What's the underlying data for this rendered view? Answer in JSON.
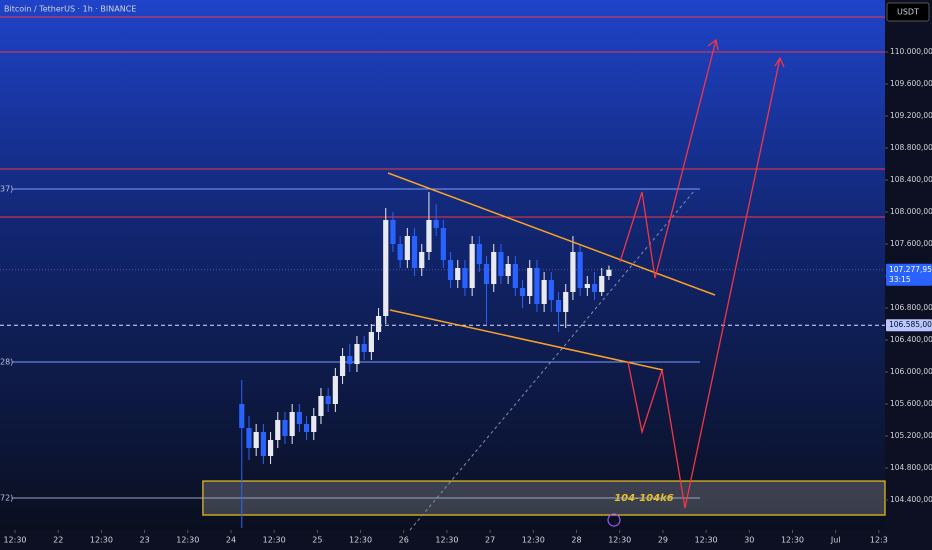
{
  "chart_data": {
    "type": "candlestick",
    "title": "Bitcoin / TetherUS · 1h · BINANCE",
    "currency": "USDT",
    "xlim": [
      -4.17,
      241.7
    ],
    "ylim": [
      104025,
      110650
    ],
    "xticks": [
      {
        "value": 0,
        "label": "12:30"
      },
      {
        "value": 12,
        "label": "22"
      },
      {
        "value": 24,
        "label": "12:30"
      },
      {
        "value": 36,
        "label": "23"
      },
      {
        "value": 48,
        "label": "12:30"
      },
      {
        "value": 60,
        "label": "24"
      },
      {
        "value": 72,
        "label": "12:30"
      },
      {
        "value": 84,
        "label": "25"
      },
      {
        "value": 96,
        "label": "12:30"
      },
      {
        "value": 108,
        "label": "26"
      },
      {
        "value": 120,
        "label": "12:30"
      },
      {
        "value": 132,
        "label": "27"
      },
      {
        "value": 144,
        "label": "12:30"
      },
      {
        "value": 156,
        "label": "28"
      },
      {
        "value": 168,
        "label": "12:30"
      },
      {
        "value": 180,
        "label": "29"
      },
      {
        "value": 192,
        "label": "12:30"
      },
      {
        "value": 204,
        "label": "30"
      },
      {
        "value": 216,
        "label": "12:30"
      },
      {
        "value": 228,
        "label": "Jul"
      },
      {
        "value": 240,
        "label": "12:3"
      }
    ],
    "yticks": [
      {
        "value": 104400,
        "label": "104.400,00"
      },
      {
        "value": 104800,
        "label": "104.800,00"
      },
      {
        "value": 105200,
        "label": "105.200,00"
      },
      {
        "value": 105600,
        "label": "105.600,00"
      },
      {
        "value": 106000,
        "label": "106.000,00"
      },
      {
        "value": 106400,
        "label": "106.400,00"
      },
      {
        "value": 106800,
        "label": "106.800,00"
      },
      {
        "value": 107200,
        "label": "107.200,00"
      },
      {
        "value": 107600,
        "label": "107.600,00"
      },
      {
        "value": 108000,
        "label": "108.000,00"
      },
      {
        "value": 108400,
        "label": "108.400,00"
      },
      {
        "value": 108800,
        "label": "108.800,00"
      },
      {
        "value": 109200,
        "label": "109.200,00"
      },
      {
        "value": 109600,
        "label": "109.600,00"
      },
      {
        "value": 110000,
        "label": "110.000,00"
      }
    ],
    "up_color": "#e8eaf0",
    "down_color": "#2962ff",
    "x": [
      63,
      65,
      67,
      69,
      71,
      73,
      75,
      77,
      79,
      81,
      83,
      85,
      87,
      89,
      91,
      93,
      95,
      97,
      99,
      101,
      103,
      105,
      107,
      109,
      111,
      113,
      115,
      117,
      119,
      121,
      123,
      125,
      127,
      129,
      131,
      133,
      135,
      137,
      139,
      141,
      143,
      145,
      147,
      149,
      151,
      153,
      155,
      157,
      159,
      161,
      163,
      165
    ],
    "open": [
      105600,
      105300,
      105050,
      105250,
      104950,
      105150,
      105400,
      105200,
      105500,
      105350,
      105250,
      105450,
      105700,
      105600,
      105950,
      106200,
      106100,
      106350,
      106250,
      106500,
      106700,
      107900,
      107600,
      107400,
      107700,
      107300,
      107500,
      107900,
      107800,
      107400,
      107150,
      107300,
      107050,
      107600,
      107350,
      107100,
      107500,
      107200,
      107350,
      107050,
      106950,
      107300,
      106850,
      107150,
      106900,
      106750,
      107000,
      107500,
      107050,
      107100,
      107000,
      107200
    ],
    "high": [
      105900,
      105450,
      105350,
      105350,
      105250,
      105500,
      105500,
      105600,
      105600,
      105450,
      105550,
      105800,
      105800,
      106050,
      106300,
      106350,
      106450,
      106450,
      106600,
      106800,
      108050,
      108000,
      107700,
      107800,
      107800,
      107600,
      108250,
      108100,
      107900,
      107500,
      107400,
      107400,
      107700,
      107700,
      107450,
      107600,
      107600,
      107450,
      107450,
      107150,
      107400,
      107400,
      107250,
      107250,
      107000,
      107100,
      107700,
      107600,
      107200,
      107250,
      107300,
      107330
    ],
    "low": [
      104050,
      104900,
      104950,
      104850,
      104850,
      105050,
      105100,
      105100,
      105250,
      105150,
      105150,
      105350,
      105500,
      105500,
      105850,
      106000,
      106000,
      106150,
      106150,
      106400,
      106600,
      107500,
      107300,
      107300,
      107200,
      107200,
      107400,
      107700,
      107300,
      107050,
      107050,
      106950,
      106950,
      107250,
      106600,
      107000,
      107100,
      107100,
      106950,
      106800,
      106850,
      106750,
      106750,
      106750,
      106500,
      106550,
      106900,
      106950,
      106950,
      106900,
      106950,
      107150
    ],
    "close": [
      105300,
      105050,
      105250,
      104950,
      105150,
      105400,
      105200,
      105500,
      105350,
      105250,
      105450,
      105700,
      105600,
      105950,
      106200,
      106100,
      106350,
      106250,
      106500,
      106700,
      107900,
      107600,
      107400,
      107700,
      107300,
      107500,
      107900,
      107800,
      107400,
      107150,
      107300,
      107050,
      107600,
      107350,
      107100,
      107500,
      107200,
      107350,
      107050,
      106950,
      107300,
      106850,
      107150,
      106900,
      106750,
      107000,
      107500,
      107050,
      107100,
      107000,
      107200,
      107278
    ],
    "levels": [
      {
        "price": 110437,
        "color": "#f23645"
      },
      {
        "price": 110000,
        "color": "#f23645"
      },
      {
        "price": 108537,
        "color": "#f23645"
      },
      {
        "price": 107937,
        "color": "#f23645"
      },
      {
        "price": 108287,
        "color": "#7a9cff",
        "label": "37)"
      },
      {
        "price": 106125,
        "color": "#7a9cff",
        "label": "28)"
      },
      {
        "price": 104425,
        "color": "#9aa4c0",
        "label": "72)"
      }
    ],
    "price_tags": [
      {
        "value": 107277.95,
        "label": "107.277,95",
        "countdown": "33:15",
        "color": "#2962ff"
      },
      {
        "value": 106585,
        "label": "106.585,00",
        "color": "#b9c6ff"
      }
    ],
    "zone": {
      "low": 104212,
      "high": 104637,
      "start": 52.2,
      "label": "104-104k6",
      "color": "#f0c419"
    }
  }
}
